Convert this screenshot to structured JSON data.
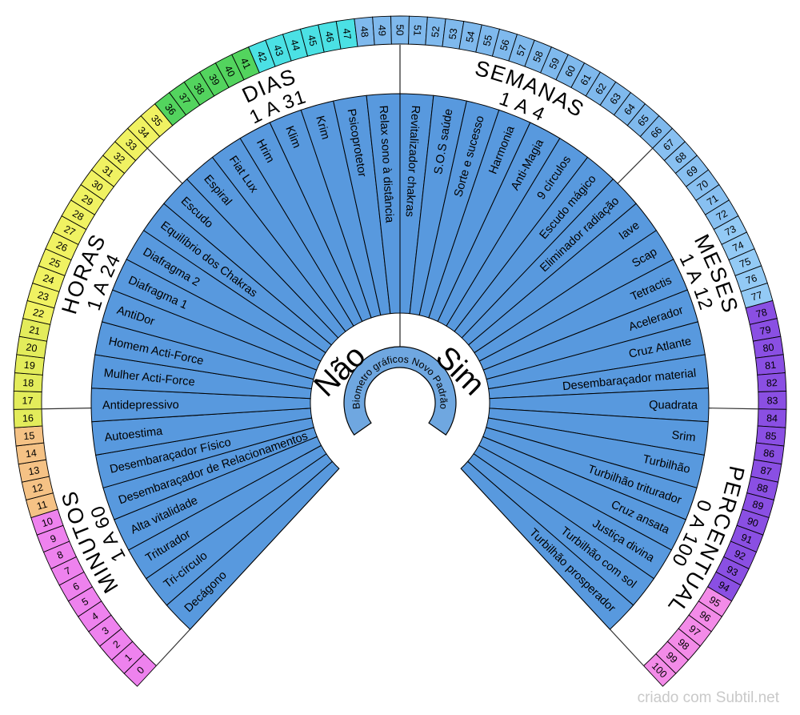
{
  "chart": {
    "hub_text": "Biometro gráficos Novo Padrão",
    "answers": {
      "no": "Não",
      "yes": "Sim"
    },
    "sections": [
      {
        "name": "MINUTOS",
        "range": "1 A 60"
      },
      {
        "name": "HORAS",
        "range": "1 A 24"
      },
      {
        "name": "DIAS",
        "range": "1 A 31"
      },
      {
        "name": "SEMANAS",
        "range": "1 A 4"
      },
      {
        "name": "MESES",
        "range": "1 A 12"
      },
      {
        "name": "PERCENTUAL",
        "range": "0 A 100"
      }
    ],
    "scale": {
      "start": 0,
      "end": 100,
      "color_ranges": [
        {
          "from": 0,
          "to": 10,
          "color": "#EE82EE"
        },
        {
          "from": 11,
          "to": 15,
          "color": "#F5C285"
        },
        {
          "from": 16,
          "to": 21,
          "color": "#E3EC5B"
        },
        {
          "from": 22,
          "to": 35,
          "color": "#F0F262"
        },
        {
          "from": 36,
          "to": 41,
          "color": "#53D45E"
        },
        {
          "from": 42,
          "to": 47,
          "color": "#4BE1E4"
        },
        {
          "from": 48,
          "to": 66,
          "color": "#7FB9ED"
        },
        {
          "from": 67,
          "to": 72,
          "color": "#88C0F1"
        },
        {
          "from": 73,
          "to": 77,
          "color": "#93CAF5"
        },
        {
          "from": 78,
          "to": 94,
          "color": "#8A4FE3"
        },
        {
          "from": 95,
          "to": 100,
          "color": "#F38BE8"
        }
      ]
    },
    "fan": {
      "color": "#5899DE",
      "labels_left": [
        "Decágono",
        "Tri-círculo",
        "Triturador",
        "Alta vitalidade",
        "Desembaraçador de Relacionamentos",
        "Desembaraçador Físico",
        "Autoestima",
        "Antidepressivo",
        "Mulher Acti-Force",
        "Homem Acti-Force",
        "AntiDor",
        "Diafragma 1",
        "Diafragma 2",
        "Equilíbrio dos Chakras",
        "Escudo",
        "Espiral",
        "Fiat Lux",
        "Hrim",
        "Klim",
        "Krim",
        "Psicoprotetor",
        "Relax sono à distância"
      ],
      "labels_right": [
        "Revitalizador chakras",
        "S.O.S saúde",
        "Sorte e sucesso",
        "Harmonia",
        "Anti-Magia",
        "9 círculos",
        "Escudo mágico",
        "Eliminador radiação",
        "Iave",
        "Scap",
        "Tetractis",
        "Acelerador",
        "Cruz Atlante",
        "Desembaraçador material",
        "Quadrata",
        "Srim",
        "Turbilhão",
        "Turbilhão triturador",
        "Cruz ansata",
        "Justiça divina",
        "Turbilhão com sol",
        "Turbilhão prosperador"
      ]
    },
    "hub_color": "#6FA7E0",
    "credit": "criado com Subtil.net"
  }
}
